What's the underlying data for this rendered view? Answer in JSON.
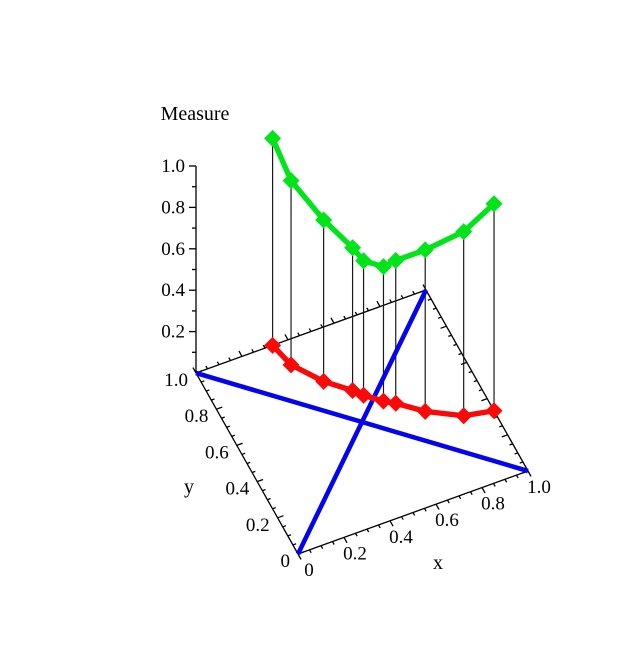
{
  "page": {
    "background": "#FFFFFF"
  },
  "chart_data": {
    "type": "line",
    "subtype": "3d-curve-with-projection",
    "title": "Measure",
    "xlabel": "x",
    "ylabel": "y",
    "zlabel": "Measure",
    "xlim": [
      0,
      1
    ],
    "ylim": [
      0,
      1
    ],
    "zlim": [
      0,
      1
    ],
    "grid": false,
    "legend": "none",
    "x_axis": {
      "tick_labels": [
        "0",
        "0.2",
        "0.4",
        "0.6",
        "0.8",
        "1.0"
      ],
      "major_step": 0.2,
      "minor_step": 0.05
    },
    "y_axis": {
      "tick_labels": [
        "0",
        "0.2",
        "0.4",
        "0.6",
        "0.8",
        "1.0"
      ],
      "major_step": 0.2,
      "minor_step": 0.05
    },
    "z_axis": {
      "tick_labels": [
        "0.2",
        "0.4",
        "0.6",
        "0.8",
        "1.0"
      ],
      "major_step": 0.2,
      "minor_step": 0.1
    },
    "colors": {
      "measure_curve": "#00E419",
      "projection_curve": "#FA0909",
      "diagonals": "#0404F0",
      "axes": "#000000",
      "drop_lines": "#1A1A1A"
    },
    "series": [
      {
        "name": "measure-curve",
        "marker": "diamond",
        "color_key": "measure_curve",
        "points_xyz": [
          [
            0.333,
            1.0,
            1.0
          ],
          [
            0.36,
            0.88,
            0.89
          ],
          [
            0.444,
            0.75,
            0.78
          ],
          [
            0.53,
            0.66,
            0.69
          ],
          [
            0.56,
            0.62,
            0.65
          ],
          [
            0.62,
            0.56,
            0.65
          ],
          [
            0.66,
            0.53,
            0.69
          ],
          [
            0.75,
            0.444,
            0.78
          ],
          [
            0.88,
            0.36,
            0.89
          ],
          [
            1.0,
            0.333,
            1.0
          ]
        ]
      },
      {
        "name": "base-projection-curve",
        "marker": "diamond",
        "color_key": "projection_curve",
        "points_xyz": [
          [
            0.333,
            1.0,
            0
          ],
          [
            0.36,
            0.88,
            0
          ],
          [
            0.444,
            0.75,
            0
          ],
          [
            0.53,
            0.66,
            0
          ],
          [
            0.56,
            0.62,
            0
          ],
          [
            0.62,
            0.56,
            0
          ],
          [
            0.66,
            0.53,
            0
          ],
          [
            0.75,
            0.444,
            0
          ],
          [
            0.88,
            0.36,
            0
          ],
          [
            1.0,
            0.333,
            0
          ]
        ]
      },
      {
        "name": "diagonal-y-equals-x",
        "marker": "none",
        "color_key": "diagonals",
        "points_xyz": [
          [
            0,
            0,
            0
          ],
          [
            1,
            1,
            0
          ]
        ]
      },
      {
        "name": "diagonal-y-equals-1-minus-x",
        "marker": "none",
        "color_key": "diagonals",
        "points_xyz": [
          [
            0,
            1,
            0
          ],
          [
            1,
            0,
            0
          ]
        ]
      }
    ],
    "drop_lines": {
      "shown": true,
      "from_series": "measure-curve",
      "to_series": "base-projection-curve"
    }
  }
}
